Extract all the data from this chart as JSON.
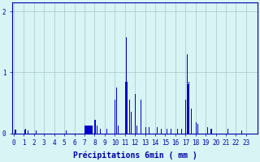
{
  "bar_color": "#0000cc",
  "background_color": "#d8f4f4",
  "grid_color": "#a8c8c8",
  "axis_color": "#0000aa",
  "tick_color": "#0000aa",
  "xlabel": "Précipitations 6min ( mm )",
  "ylim": [
    0,
    2.15
  ],
  "yticks": [
    0,
    1,
    2
  ],
  "xlim": [
    -0.15,
    24.15
  ],
  "bar_width": 0.09,
  "bars": [
    [
      0.05,
      0.06
    ],
    [
      0.15,
      0.06
    ],
    [
      1.05,
      0.06
    ],
    [
      1.15,
      0.07
    ],
    [
      1.35,
      0.05
    ],
    [
      2.15,
      0.05
    ],
    [
      5.15,
      0.05
    ],
    [
      7.0,
      0.13
    ],
    [
      7.1,
      0.13
    ],
    [
      7.2,
      0.13
    ],
    [
      7.3,
      0.13
    ],
    [
      7.4,
      0.13
    ],
    [
      7.5,
      0.13
    ],
    [
      7.6,
      0.13
    ],
    [
      7.7,
      0.13
    ],
    [
      8.0,
      0.22
    ],
    [
      8.2,
      0.13
    ],
    [
      8.5,
      0.07
    ],
    [
      9.15,
      0.07
    ],
    [
      10.0,
      0.55
    ],
    [
      10.1,
      0.75
    ],
    [
      10.3,
      0.13
    ],
    [
      11.0,
      0.85
    ],
    [
      11.1,
      1.58
    ],
    [
      11.2,
      0.85
    ],
    [
      11.4,
      0.55
    ],
    [
      11.55,
      0.35
    ],
    [
      12.0,
      0.65
    ],
    [
      12.15,
      0.12
    ],
    [
      12.55,
      0.55
    ],
    [
      13.05,
      0.1
    ],
    [
      13.35,
      0.1
    ],
    [
      14.15,
      0.1
    ],
    [
      14.55,
      0.08
    ],
    [
      15.1,
      0.08
    ],
    [
      15.55,
      0.08
    ],
    [
      16.15,
      0.08
    ],
    [
      16.6,
      0.08
    ],
    [
      17.0,
      0.55
    ],
    [
      17.1,
      1.3
    ],
    [
      17.2,
      0.8
    ],
    [
      17.3,
      0.85
    ],
    [
      17.5,
      0.4
    ],
    [
      18.0,
      0.18
    ],
    [
      18.2,
      0.15
    ],
    [
      19.15,
      0.1
    ],
    [
      19.5,
      0.08
    ],
    [
      21.15,
      0.08
    ],
    [
      22.55,
      0.05
    ]
  ]
}
